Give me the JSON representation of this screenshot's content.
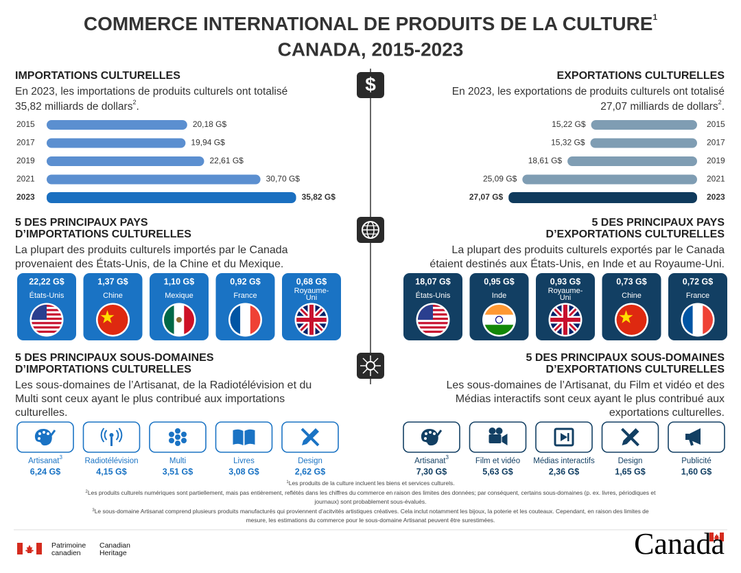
{
  "header": {
    "title": "COMMERCE INTERNATIONAL DE PRODUITS DE LA CULTURE",
    "title_note": "1",
    "subtitle": "CANADA, 2015-2023"
  },
  "imports": {
    "heading": "IMPORTATIONS CULTURELLES",
    "text": [
      "En 2023, les importations de produits culturels ont totalisé",
      "35,82 milliards de dollars"
    ],
    "text_note": "2",
    "text_end": ".",
    "chart": {
      "categories": [
        "2015",
        "2017",
        "2019",
        "2021",
        "2023"
      ],
      "values": [
        20.18,
        19.94,
        22.61,
        30.7,
        35.82
      ],
      "value_labels": [
        "20,18 G$",
        "19,94 G$",
        "22,61 G$",
        "30,70 G$",
        "35,82 G$"
      ],
      "color": "#5b8fd0",
      "highlight_color": "#1a6fc0"
    }
  },
  "exports": {
    "heading": "EXPORTATIONS CULTURELLES",
    "text": [
      "En 2023, les exportations de produits culturels ont totalisé",
      "27,07 milliards de dollars"
    ],
    "text_note": "2",
    "text_end": ".",
    "chart": {
      "categories": [
        "2015",
        "2017",
        "2019",
        "2021",
        "2023"
      ],
      "values": [
        15.22,
        15.32,
        18.61,
        25.09,
        27.07
      ],
      "value_labels": [
        "15,22 G$",
        "15,32 G$",
        "18,61 G$",
        "25,09 G$",
        "27,07 G$"
      ],
      "color": "#7f9db3",
      "highlight_color": "#0f3a5c"
    }
  },
  "import_countries": {
    "heading": [
      "5 DES PRINCIPAUX PAYS",
      "D’IMPORTATIONS CULTURELLES"
    ],
    "text": [
      "La plupart des produits culturels importés par le Canada",
      "provenaient des États-Unis, de la Chine et du Mexique."
    ],
    "color": "#1a73c4",
    "items": [
      {
        "value": "22,22 G$",
        "name": [
          "États-Unis"
        ]
      },
      {
        "value": "1,37 G$",
        "name": [
          "Chine"
        ]
      },
      {
        "value": "1,10 G$",
        "name": [
          "Mexique"
        ]
      },
      {
        "value": "0,92 G$",
        "name": [
          "France"
        ]
      },
      {
        "value": "0,68 G$",
        "name": [
          "Royaume-",
          "Uni"
        ]
      }
    ]
  },
  "export_countries": {
    "heading": [
      "5 DES PRINCIPAUX PAYS",
      "D’EXPORTATIONS CULTURELLES"
    ],
    "text": [
      "La plupart des produits culturels exportés par le Canada",
      "étaient destinés aux États-Unis, en Inde et au Royaume-Uni."
    ],
    "color": "#123f63",
    "items": [
      {
        "value": "18,07 G$",
        "name": [
          "États-Unis"
        ]
      },
      {
        "value": "0,95 G$",
        "name": [
          "Inde"
        ]
      },
      {
        "value": "0,93 G$",
        "name": [
          "Royaume-",
          "Uni"
        ]
      },
      {
        "value": "0,73 G$",
        "name": [
          "Chine"
        ]
      },
      {
        "value": "0,72 G$",
        "name": [
          "France"
        ]
      }
    ]
  },
  "import_subdomains": {
    "heading": [
      "5 DES PRINCIPAUX SOUS-DOMAINES",
      "D’IMPORTATIONS CULTURELLES"
    ],
    "text": [
      "Les sous-domaines de l’Artisanat, de la Radiotélévision et du",
      "Multi sont ceux ayant le plus contribué aux importations",
      "culturelles."
    ],
    "color": "#1a73c4",
    "items": [
      {
        "name": "Artisanat",
        "note": "3",
        "value": "6,24 G$"
      },
      {
        "name": "Radiotélévision",
        "value": "4,15 G$"
      },
      {
        "name": "Multi",
        "value": "3,51 G$"
      },
      {
        "name": "Livres",
        "value": "3,08 G$"
      },
      {
        "name": "Design",
        "value": "2,62 G$"
      }
    ]
  },
  "export_subdomains": {
    "heading": [
      "5 DES PRINCIPAUX SOUS-DOMAINES",
      "D’EXPORTATIONS CULTURELLES"
    ],
    "text": [
      "Les sous-domaines de l’Artisanat, du Film et vidéo et des",
      "Médias interactifs sont ceux ayant le plus contribué aux",
      "exportations culturelles."
    ],
    "color": "#123f63",
    "items": [
      {
        "name": "Artisanat",
        "note": "3",
        "value": "7,30 G$"
      },
      {
        "name": "Film et vidéo",
        "value": "5,63 G$"
      },
      {
        "name": "Médias interactifs",
        "value": "2,36 G$"
      },
      {
        "name": "Design",
        "value": "1,65 G$"
      },
      {
        "name": "Publicité",
        "value": "1,60 G$"
      }
    ]
  },
  "footnotes": [
    {
      "note": "1",
      "text": [
        "Les produits de la culture incluent les biens et services culturels."
      ]
    },
    {
      "note": "2",
      "text": [
        "Les produits culturels numériques sont partiellement, mais pas entièrement, reflétés dans les chiffres du commerce en raison des limites des données; par conséquent, certains sous-domaines (p. ex. livres, périodiques et",
        "journaux) sont probablement sous-évalués."
      ]
    },
    {
      "note": "3",
      "text": [
        "Le sous-domaine Artisanat comprend plusieurs produits manufacturés qui proviennent d’acitvités artistiques créatives. Cela inclut notamment les bijoux, la poterie et les couteaux. Cependant, en raison des limites de",
        "mesure, les estimations du commerce pour le sous-domaine Artisanat peuvent être surestimées."
      ]
    }
  ],
  "footer": {
    "department_fr": [
      "Patrimoine",
      "canadien"
    ],
    "department_en": [
      "Canadian",
      "Heritage"
    ],
    "wordmark": "Canada"
  }
}
